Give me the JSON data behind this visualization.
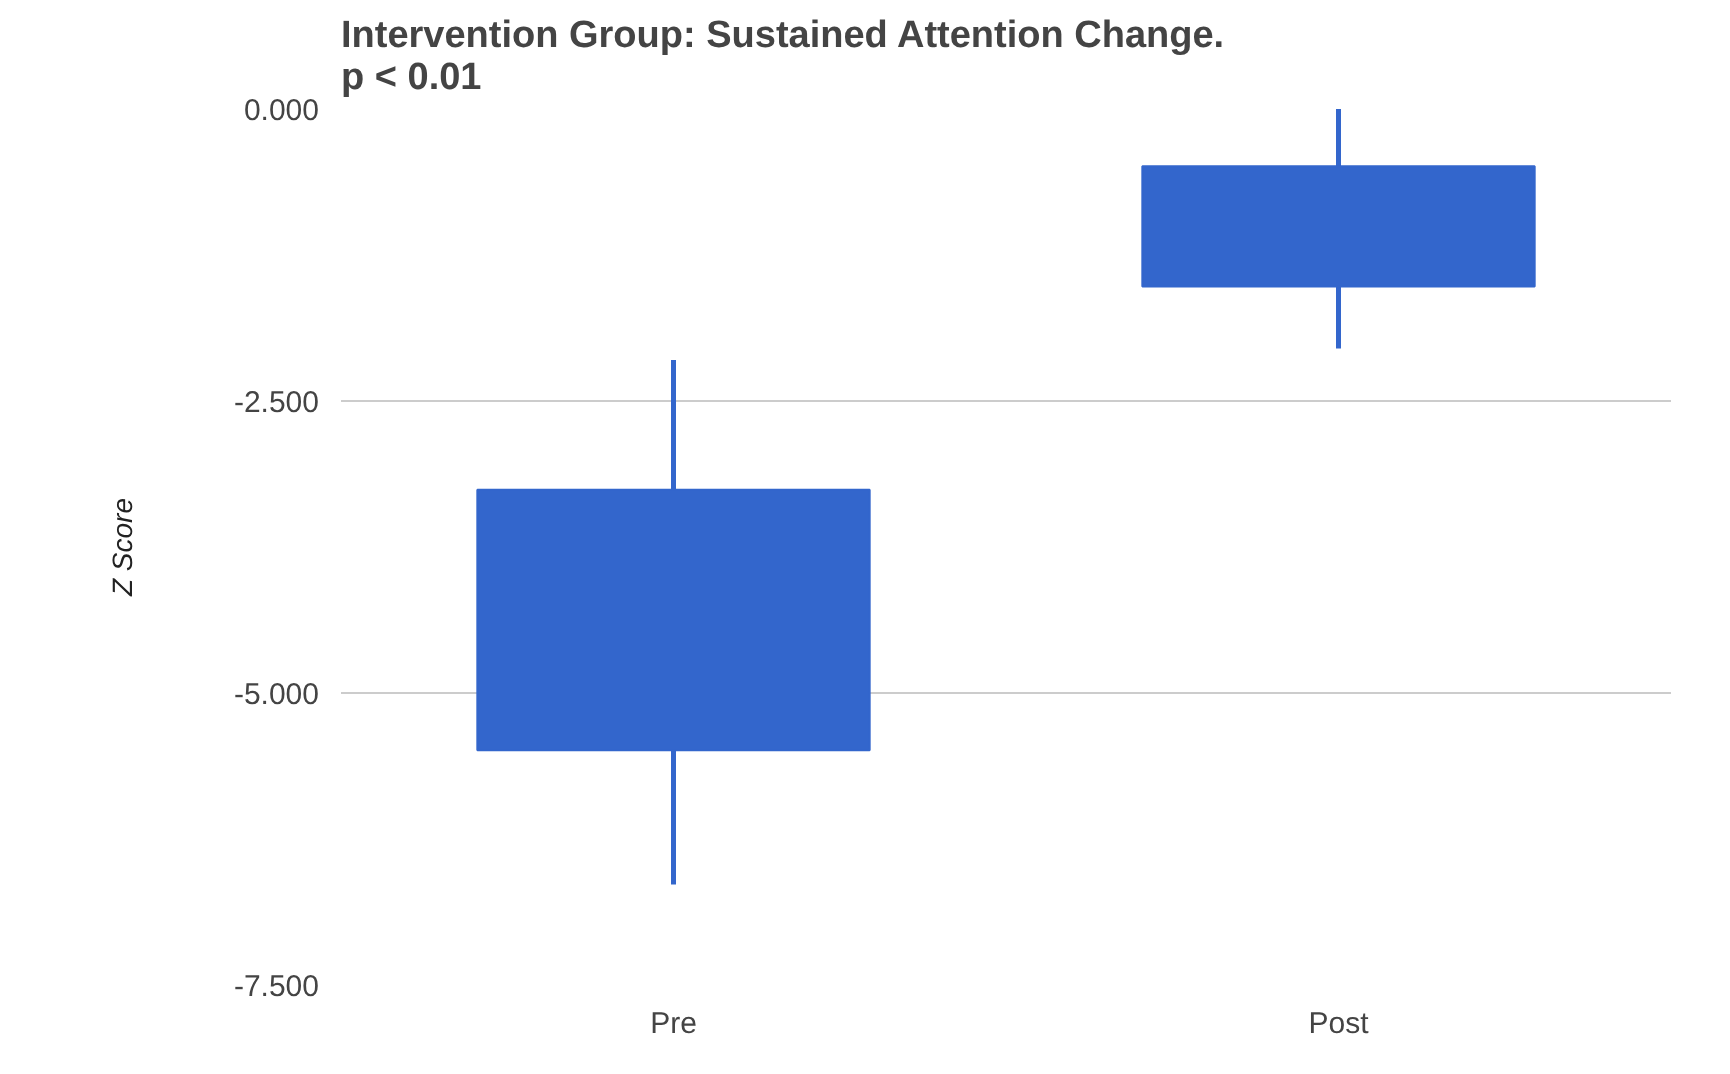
{
  "chart_data": {
    "type": "candlestick",
    "title": "Intervention Group: Sustained Attention Change.\np < 0.01",
    "ylabel": "Z Score",
    "categories": [
      "Pre",
      "Post"
    ],
    "ohlc": [
      [
        -3.26,
        -2.15,
        -6.64,
        -5.49
      ],
      [
        -0.49,
        0.0,
        -2.05,
        -1.52
      ]
    ],
    "color": "#3366cc",
    "ylim": [
      -7.5,
      0
    ],
    "yticks": [
      {
        "value": 0,
        "label": "0.000"
      },
      {
        "value": -2.5,
        "label": "-2.500"
      },
      {
        "value": -5,
        "label": "-5.000"
      },
      {
        "value": -7.5,
        "label": "-7.500"
      }
    ],
    "grid": "y"
  }
}
